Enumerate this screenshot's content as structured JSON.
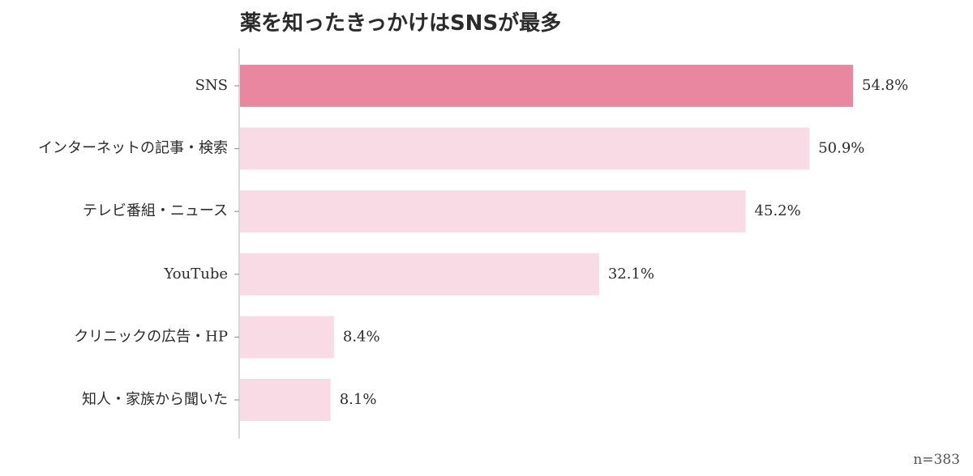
{
  "chart_data": {
    "type": "bar",
    "orientation": "horizontal",
    "title": "薬を知ったきっかけはSNSが最多",
    "categories": [
      "SNS",
      "インターネットの記事・検索",
      "テレビ番組・ニュース",
      "YouTube",
      "クリニックの広告・HP",
      "知人・家族から聞いた"
    ],
    "values": [
      54.8,
      50.9,
      45.2,
      32.1,
      8.4,
      8.1
    ],
    "value_labels": [
      "54.8%",
      "50.9%",
      "45.2%",
      "32.1%",
      "8.4%",
      "8.1%"
    ],
    "xlim": [
      0,
      54.8
    ],
    "grid": false,
    "highlight_color": "#e8879f",
    "bar_color": "#f9dbe5",
    "note": "n=383"
  }
}
